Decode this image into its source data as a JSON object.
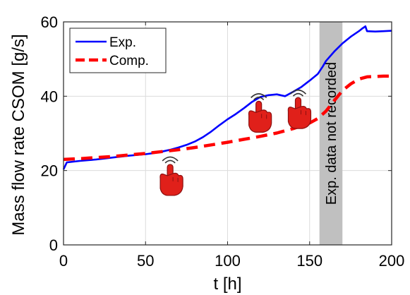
{
  "chart_data": {
    "type": "line",
    "title": "",
    "xlabel": "t [h]",
    "ylabel": "Mass flow rate CSOM [g/s]",
    "xlim": [
      0,
      200
    ],
    "ylim": [
      0,
      60
    ],
    "xticks": [
      0,
      50,
      100,
      150,
      200
    ],
    "yticks": [
      0,
      20,
      40,
      60
    ],
    "grid": true,
    "legend_position": "top-left",
    "series": [
      {
        "name": "Exp.",
        "color": "#0000ff",
        "style": "solid",
        "x": [
          0,
          2,
          10,
          20,
          30,
          40,
          50,
          55,
          60,
          65,
          70,
          75,
          80,
          85,
          90,
          95,
          100,
          105,
          110,
          115,
          120,
          125,
          130,
          135,
          140,
          145,
          150,
          155,
          158,
          160,
          165,
          170,
          175,
          180,
          182,
          184,
          185,
          190,
          195,
          200
        ],
        "y": [
          20.3,
          22.2,
          22.6,
          23.0,
          23.5,
          24.0,
          24.4,
          24.7,
          25.1,
          25.6,
          26.2,
          26.9,
          27.8,
          29.0,
          30.5,
          32.2,
          33.8,
          35.2,
          36.8,
          38.5,
          39.8,
          40.3,
          40.5,
          40.0,
          41.2,
          42.5,
          44.2,
          46.0,
          48.0,
          49.5,
          52.0,
          54.2,
          56.0,
          57.5,
          58.2,
          58.8,
          57.5,
          57.4,
          57.5,
          57.6
        ]
      },
      {
        "name": "Comp.",
        "color": "#ff0000",
        "style": "dashed",
        "x": [
          0,
          10,
          20,
          30,
          40,
          50,
          60,
          70,
          80,
          90,
          100,
          110,
          120,
          130,
          140,
          150,
          155,
          160,
          165,
          170,
          175,
          180,
          185,
          190,
          195,
          200
        ],
        "y": [
          23.0,
          23.2,
          23.5,
          23.8,
          24.2,
          24.6,
          25.1,
          25.6,
          26.2,
          26.9,
          27.6,
          28.4,
          29.2,
          30.1,
          31.3,
          32.8,
          34.0,
          36.0,
          38.8,
          41.5,
          43.3,
          44.6,
          45.2,
          45.3,
          45.4,
          45.4
        ]
      }
    ],
    "annotations": [
      {
        "type": "shaded-band",
        "x_range": [
          156,
          170
        ],
        "color": "#c0c0c0",
        "text": "Exp. data not recorded"
      },
      {
        "type": "icon",
        "name": "tap-hand-icon",
        "x": 65,
        "y": 19
      },
      {
        "type": "icon",
        "name": "tap-hand-icon",
        "x": 119,
        "y": 36
      },
      {
        "type": "icon",
        "name": "tap-hand-icon",
        "x": 143,
        "y": 37
      }
    ]
  }
}
